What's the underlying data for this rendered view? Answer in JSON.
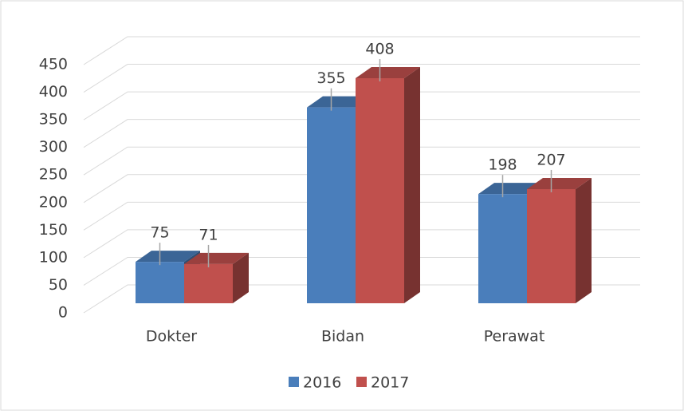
{
  "chart_data": {
    "type": "bar",
    "categories": [
      "Dokter",
      "Bidan",
      "Perawat"
    ],
    "series": [
      {
        "name": "2016",
        "color": "#4a7ebb",
        "values": [
          75,
          355,
          198
        ]
      },
      {
        "name": "2017",
        "color": "#c0504d",
        "values": [
          71,
          408,
          207
        ]
      }
    ],
    "ylim": [
      0,
      450
    ],
    "yticks": [
      0,
      50,
      100,
      150,
      200,
      250,
      300,
      350,
      400,
      450
    ],
    "grid": true,
    "legend": "bottom"
  }
}
